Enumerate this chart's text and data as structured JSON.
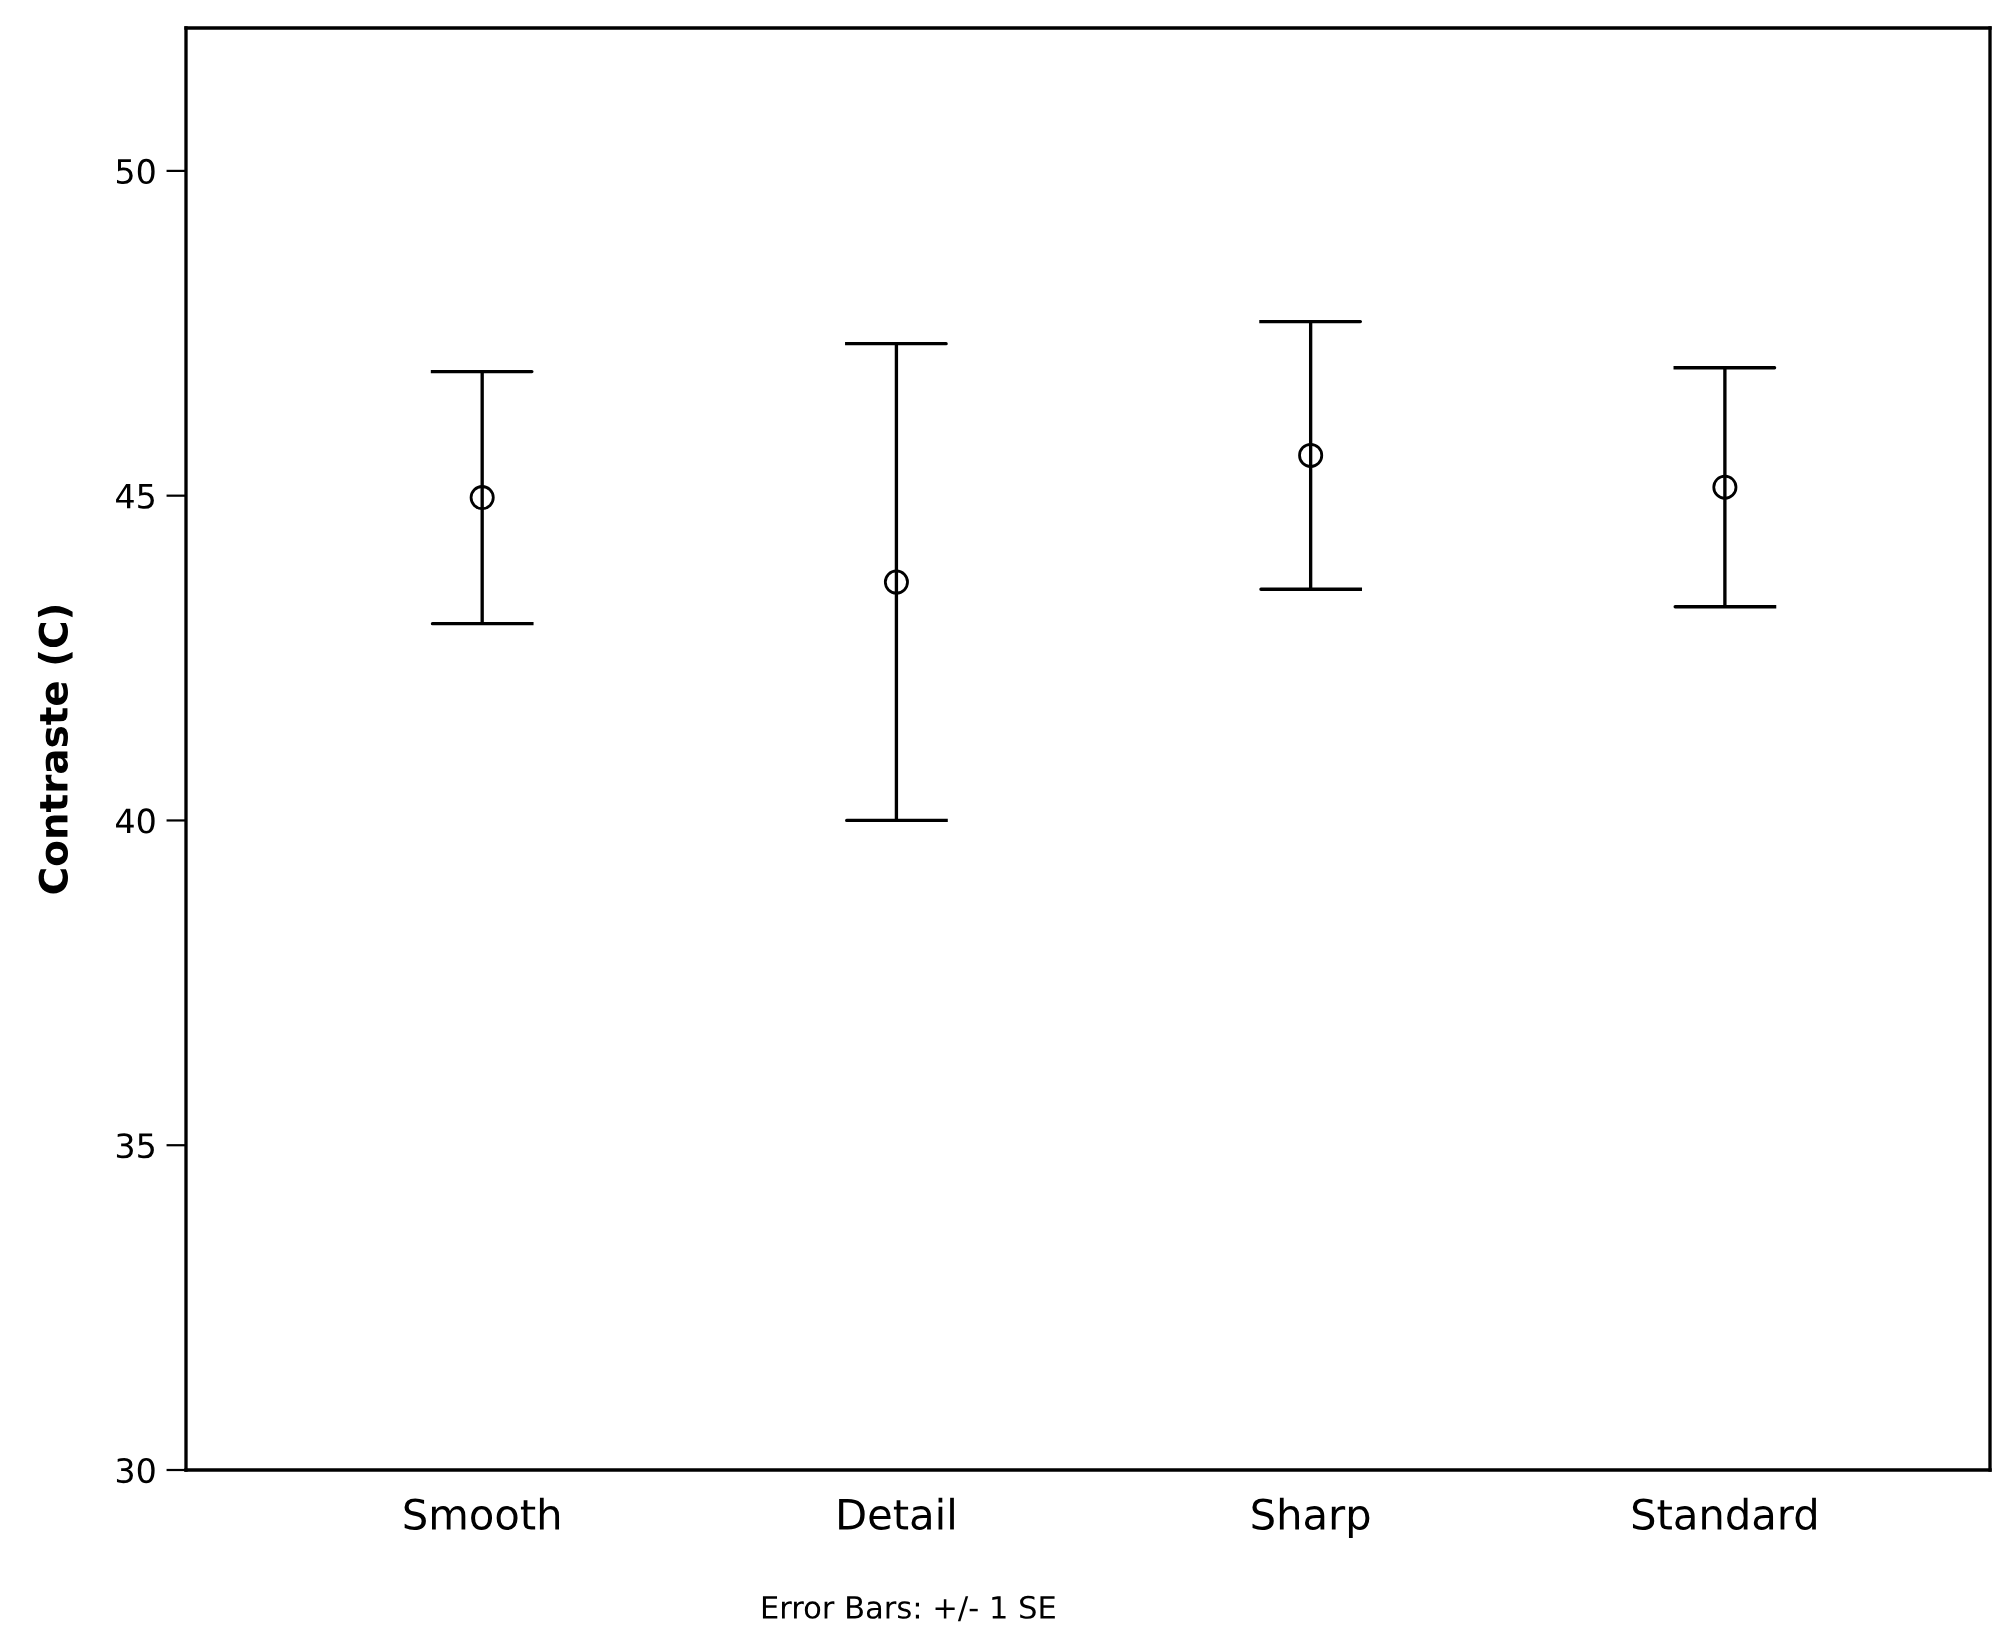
{
  "chart_data": {
    "type": "scatter",
    "ylabel": "Contraste (C)",
    "categories": [
      "Smooth",
      "Detail",
      "Sharp",
      "Standard"
    ],
    "values": [
      44.97,
      43.67,
      45.62,
      45.13
    ],
    "errors": [
      1.94,
      3.67,
      2.06,
      1.84
    ],
    "color": "#000000",
    "marker": "circle",
    "ylim": [
      30,
      52.2
    ],
    "yticks": [
      30,
      35,
      40,
      45,
      50
    ],
    "grid": false,
    "annotations": [
      "Error Bars: +/- 1 SE"
    ]
  }
}
